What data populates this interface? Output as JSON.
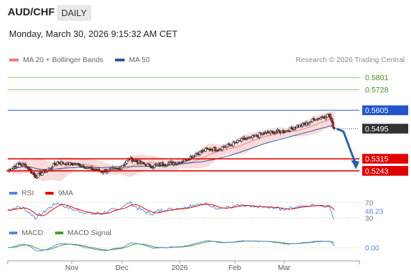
{
  "header": {
    "pair": "AUD/CHF",
    "timeframe": "DAILY",
    "datetime": "Monday, March 30, 2026 9:15:32 AM CET",
    "credit": "Research © 2026 Trading Central"
  },
  "colors": {
    "ma20": "#f08080",
    "ma50": "#2a5a9a",
    "resistance": "#2255cc",
    "support": "#e00000",
    "target": "#88c060",
    "arrow": "#2a60a0",
    "candle_up": "#ffffff",
    "candle_down": "#cc2222",
    "rsi": "#5b86d6",
    "rsi_ma": "#e00000",
    "macd": "#5b86d6",
    "macd_signal": "#4a9a2a"
  },
  "chart_data": [
    {
      "type": "candlestick",
      "legend": [
        "MA 20 + Bollinger Bands",
        "MA 50"
      ],
      "ylim": [
        0.518,
        0.586
      ],
      "x_ticks": [
        "Nov",
        "Dec",
        "2026",
        "Feb",
        "Mar"
      ],
      "levels": [
        {
          "label": "0.5801",
          "value": 0.5801,
          "kind": "target"
        },
        {
          "label": "0.5728",
          "value": 0.5728,
          "kind": "target"
        },
        {
          "label": "0.5605",
          "value": 0.5605,
          "kind": "resistance"
        },
        {
          "label": "0.5495",
          "value": 0.5495,
          "kind": "last"
        },
        {
          "label": "0.5315",
          "value": 0.5315,
          "kind": "support"
        },
        {
          "label": "0.5243",
          "value": 0.5243,
          "kind": "support"
        }
      ],
      "close_anchors": [
        [
          0,
          0.5245
        ],
        [
          8,
          0.5285
        ],
        [
          13,
          0.5275
        ],
        [
          20,
          0.521
        ],
        [
          28,
          0.5245
        ],
        [
          36,
          0.5295
        ],
        [
          44,
          0.5285
        ],
        [
          52,
          0.528
        ],
        [
          60,
          0.5255
        ],
        [
          68,
          0.524
        ],
        [
          80,
          0.5255
        ],
        [
          88,
          0.5315
        ],
        [
          96,
          0.529
        ],
        [
          104,
          0.527
        ],
        [
          112,
          0.5285
        ],
        [
          120,
          0.529
        ],
        [
          128,
          0.5305
        ],
        [
          136,
          0.5345
        ],
        [
          144,
          0.537
        ],
        [
          152,
          0.5375
        ],
        [
          160,
          0.5395
        ],
        [
          168,
          0.5425
        ],
        [
          176,
          0.544
        ],
        [
          184,
          0.5465
        ],
        [
          192,
          0.5475
        ],
        [
          200,
          0.548
        ],
        [
          208,
          0.5505
        ],
        [
          216,
          0.5525
        ],
        [
          222,
          0.5555
        ],
        [
          228,
          0.5565
        ],
        [
          232,
          0.558
        ],
        [
          234,
          0.553
        ],
        [
          236,
          0.5495
        ]
      ]
    },
    {
      "type": "line",
      "legend": [
        "RSI",
        "9MA"
      ],
      "levels": [
        {
          "label": "70",
          "value": 70
        },
        {
          "label": "48.23",
          "value": 48.23
        },
        {
          "label": "30",
          "value": 30
        }
      ],
      "ylim": [
        20,
        80
      ]
    },
    {
      "type": "line",
      "legend": [
        "MACD",
        "MACD Signal"
      ],
      "levels": [
        {
          "label": "0.00",
          "value": 0
        }
      ]
    }
  ]
}
